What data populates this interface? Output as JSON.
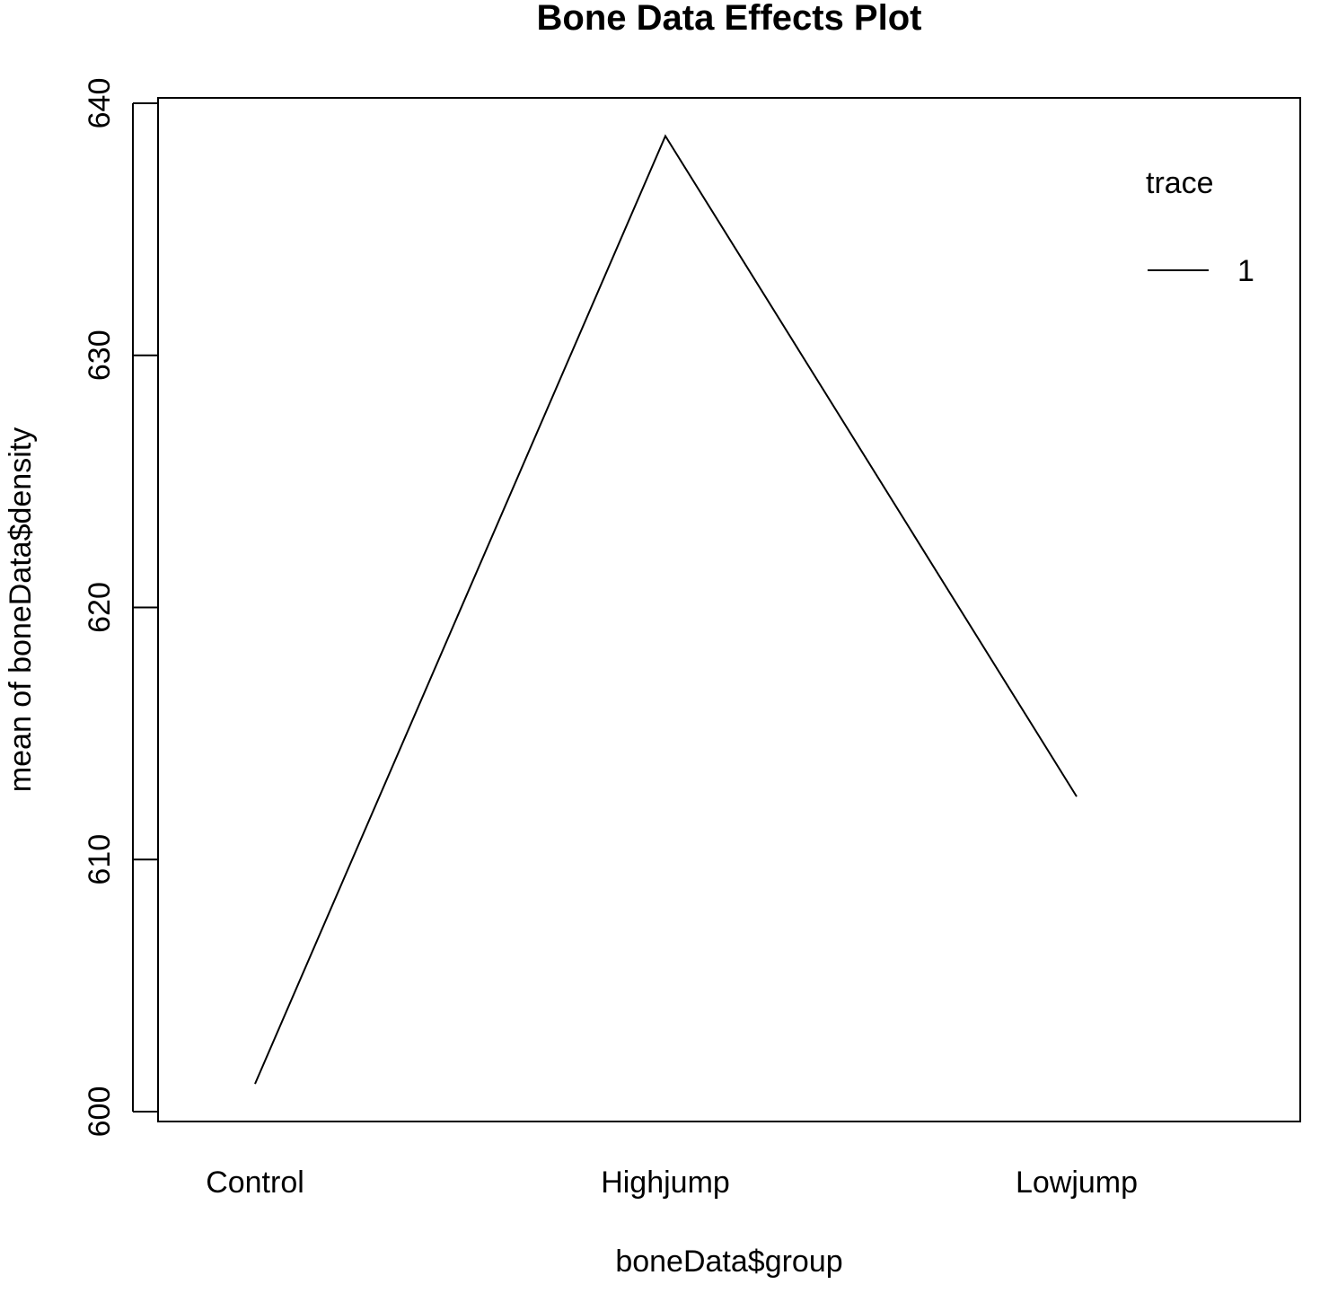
{
  "chart_data": {
    "type": "line",
    "title": "Bone Data Effects Plot",
    "xlabel": "boneData$group",
    "ylabel": "mean of  boneData$density",
    "categories": [
      "Control",
      "Highjump",
      "Lowjump"
    ],
    "series": [
      {
        "name": "1",
        "values": [
          601.1,
          638.7,
          612.5
        ]
      }
    ],
    "ylim": [
      600,
      640
    ],
    "yticks": [
      "600",
      "610",
      "620",
      "630",
      "640"
    ],
    "legend": {
      "title": "trace",
      "position": "top-right"
    },
    "grid": false
  }
}
